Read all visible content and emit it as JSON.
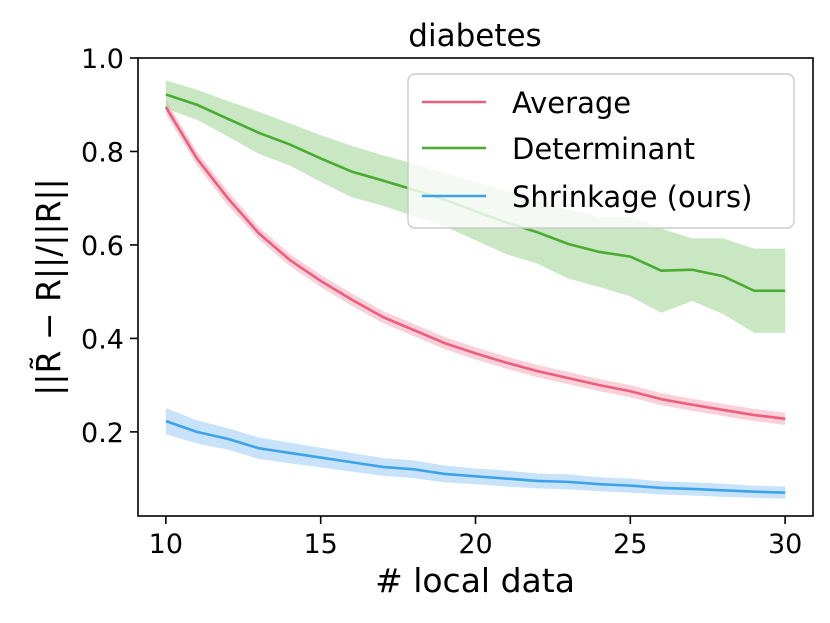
{
  "chart_data": {
    "type": "line",
    "title": "diabetes",
    "xlabel": "# local data",
    "ylabel": "||R̃ − R||/||R||",
    "xlim": [
      9.1,
      30.9
    ],
    "ylim": [
      0.02,
      1.0
    ],
    "xticks": [
      10,
      15,
      20,
      25,
      30
    ],
    "xtick_labels": [
      "10",
      "15",
      "20",
      "25",
      "30"
    ],
    "yticks": [
      0.2,
      0.4,
      0.6,
      0.8,
      1.0
    ],
    "ytick_labels": [
      "0.2",
      "0.4",
      "0.6",
      "0.8",
      "1.0"
    ],
    "x": [
      10,
      11,
      12,
      13,
      14,
      15,
      16,
      17,
      18,
      19,
      20,
      21,
      22,
      23,
      24,
      25,
      26,
      27,
      28,
      29,
      30
    ],
    "legend_position": "top-right",
    "series": [
      {
        "name": "Average",
        "color": "#ee5d7d",
        "band_color": "#f7b3c2",
        "values": [
          0.895,
          0.785,
          0.7,
          0.625,
          0.568,
          0.523,
          0.483,
          0.446,
          0.418,
          0.39,
          0.368,
          0.348,
          0.33,
          0.315,
          0.3,
          0.287,
          0.27,
          0.258,
          0.247,
          0.236,
          0.228
        ],
        "lower": [
          0.88,
          0.77,
          0.685,
          0.612,
          0.555,
          0.51,
          0.47,
          0.433,
          0.405,
          0.377,
          0.355,
          0.335,
          0.317,
          0.302,
          0.287,
          0.274,
          0.257,
          0.245,
          0.234,
          0.223,
          0.215
        ],
        "upper": [
          0.91,
          0.8,
          0.715,
          0.638,
          0.581,
          0.536,
          0.496,
          0.459,
          0.431,
          0.403,
          0.381,
          0.361,
          0.343,
          0.328,
          0.313,
          0.3,
          0.283,
          0.271,
          0.26,
          0.249,
          0.241
        ]
      },
      {
        "name": "Determinant",
        "color": "#4aab32",
        "band_color": "#a3d79a",
        "values": [
          0.922,
          0.9,
          0.87,
          0.84,
          0.815,
          0.785,
          0.757,
          0.738,
          0.718,
          0.697,
          0.672,
          0.648,
          0.627,
          0.602,
          0.585,
          0.575,
          0.545,
          0.547,
          0.533,
          0.502,
          0.502
        ],
        "lower": [
          0.892,
          0.868,
          0.832,
          0.795,
          0.77,
          0.735,
          0.702,
          0.684,
          0.662,
          0.64,
          0.61,
          0.58,
          0.56,
          0.528,
          0.51,
          0.49,
          0.455,
          0.48,
          0.452,
          0.412,
          0.412
        ],
        "upper": [
          0.952,
          0.932,
          0.908,
          0.885,
          0.86,
          0.835,
          0.812,
          0.792,
          0.774,
          0.754,
          0.734,
          0.716,
          0.694,
          0.676,
          0.66,
          0.66,
          0.635,
          0.614,
          0.614,
          0.592,
          0.592
        ]
      },
      {
        "name": "Shrinkage (ours)",
        "color": "#3ca3ea",
        "band_color": "#a3d1f5",
        "values": [
          0.223,
          0.2,
          0.185,
          0.165,
          0.155,
          0.145,
          0.135,
          0.125,
          0.12,
          0.11,
          0.105,
          0.1,
          0.095,
          0.093,
          0.088,
          0.085,
          0.08,
          0.078,
          0.075,
          0.072,
          0.07
        ],
        "lower": [
          0.195,
          0.175,
          0.162,
          0.142,
          0.133,
          0.124,
          0.115,
          0.106,
          0.101,
          0.092,
          0.088,
          0.083,
          0.079,
          0.077,
          0.073,
          0.07,
          0.066,
          0.064,
          0.061,
          0.059,
          0.057
        ],
        "upper": [
          0.251,
          0.225,
          0.208,
          0.188,
          0.177,
          0.166,
          0.155,
          0.144,
          0.139,
          0.128,
          0.122,
          0.117,
          0.111,
          0.109,
          0.103,
          0.1,
          0.094,
          0.092,
          0.089,
          0.085,
          0.083
        ]
      }
    ]
  }
}
